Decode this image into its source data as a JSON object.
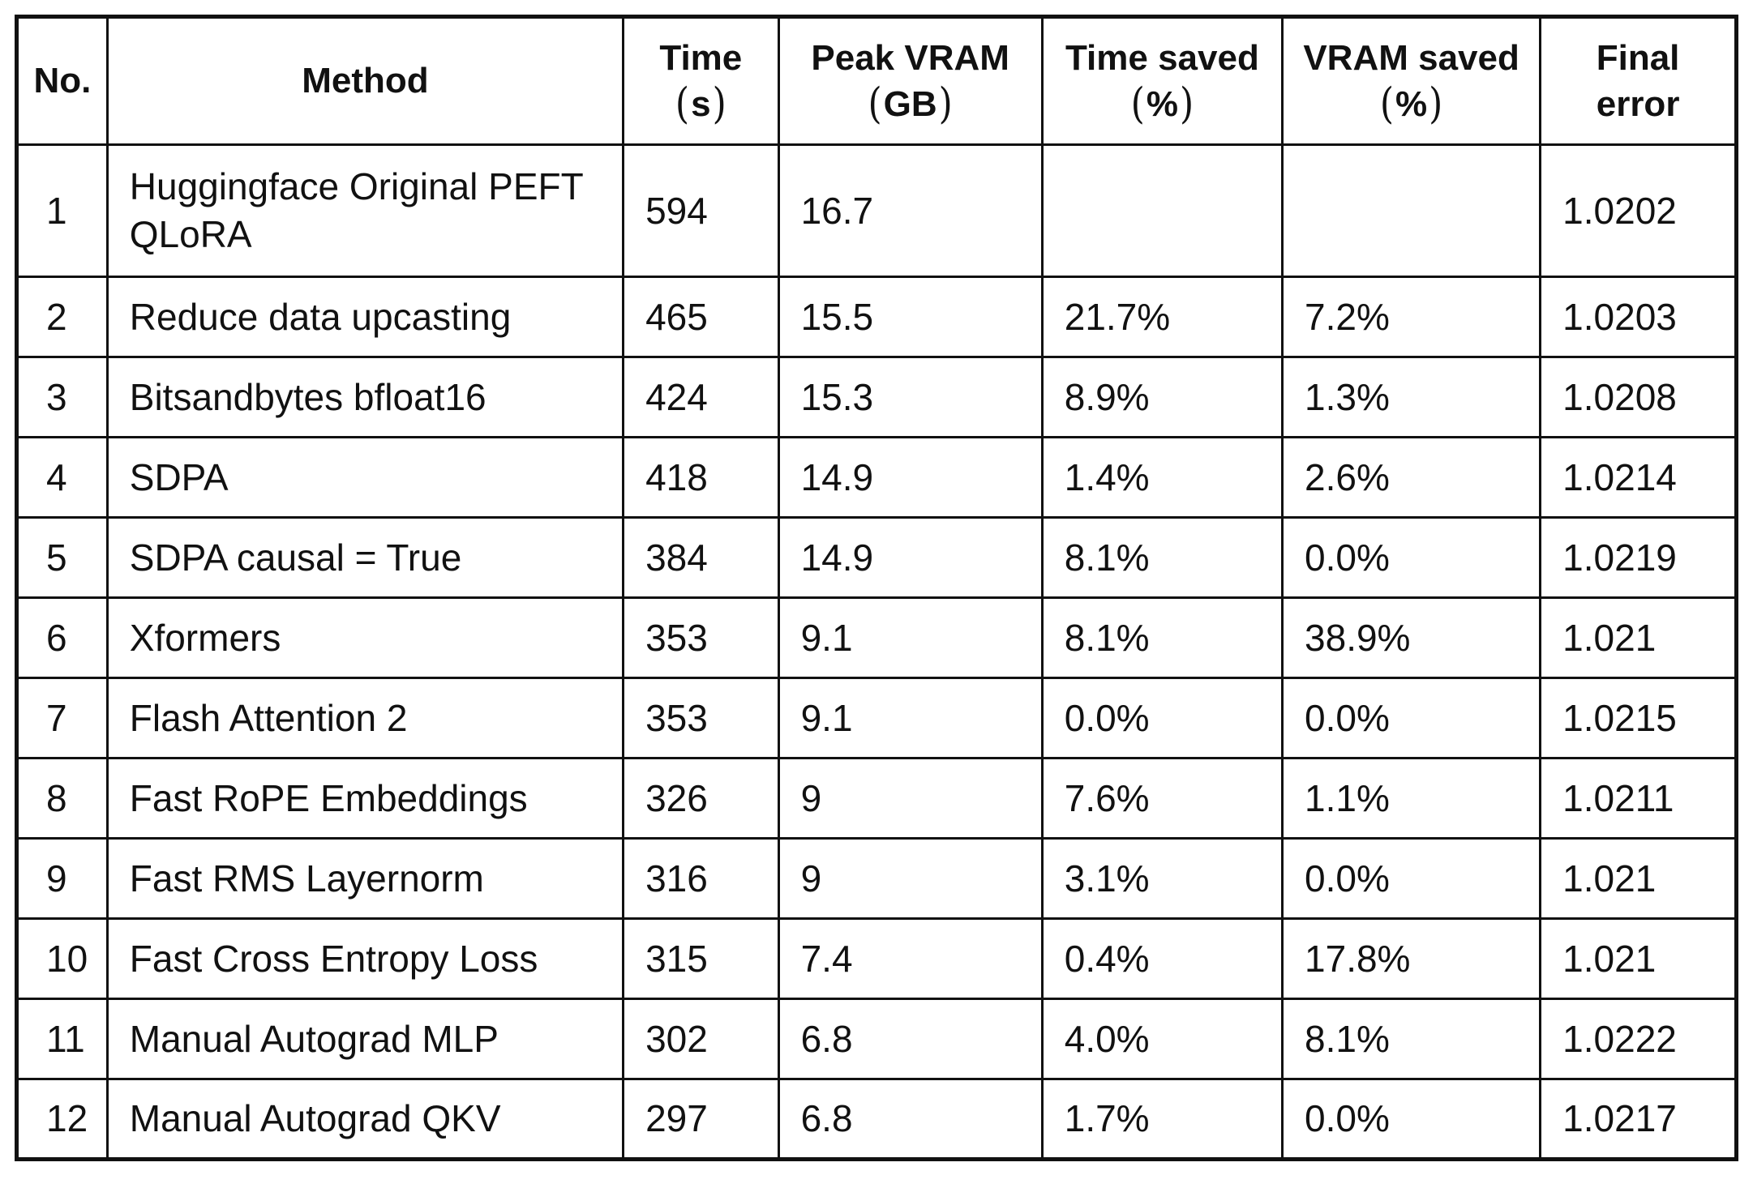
{
  "colors": {
    "background": "#ffffff",
    "text": "#111111",
    "border": "#111111"
  },
  "table": {
    "columns": [
      {
        "label": "No.",
        "unit": ""
      },
      {
        "label": "Method",
        "unit": ""
      },
      {
        "label": "Time",
        "unit": "s"
      },
      {
        "label": "Peak VRAM",
        "unit": "GB"
      },
      {
        "label": "Time saved",
        "unit": "%"
      },
      {
        "label": "VRAM saved",
        "unit": "%"
      },
      {
        "label": "Final error",
        "unit": ""
      }
    ],
    "rows": [
      {
        "no": "1",
        "method": "Huggingface Original PEFT QLoRA",
        "time": "594",
        "peak_vram": "16.7",
        "time_saved": "",
        "vram_saved": "",
        "final_error": "1.0202"
      },
      {
        "no": "2",
        "method": "Reduce data upcasting",
        "time": "465",
        "peak_vram": "15.5",
        "time_saved": "21.7%",
        "vram_saved": "7.2%",
        "final_error": "1.0203"
      },
      {
        "no": "3",
        "method": "Bitsandbytes bfloat16",
        "time": "424",
        "peak_vram": "15.3",
        "time_saved": "8.9%",
        "vram_saved": "1.3%",
        "final_error": "1.0208"
      },
      {
        "no": "4",
        "method": "SDPA",
        "time": "418",
        "peak_vram": "14.9",
        "time_saved": "1.4%",
        "vram_saved": "2.6%",
        "final_error": "1.0214"
      },
      {
        "no": "5",
        "method": "SDPA causal = True",
        "time": "384",
        "peak_vram": "14.9",
        "time_saved": "8.1%",
        "vram_saved": "0.0%",
        "final_error": "1.0219"
      },
      {
        "no": "6",
        "method": "Xformers",
        "time": "353",
        "peak_vram": "9.1",
        "time_saved": "8.1%",
        "vram_saved": "38.9%",
        "final_error": "1.021"
      },
      {
        "no": "7",
        "method": "Flash Attention 2",
        "time": "353",
        "peak_vram": "9.1",
        "time_saved": "0.0%",
        "vram_saved": "0.0%",
        "final_error": "1.0215"
      },
      {
        "no": "8",
        "method": "Fast RoPE Embeddings",
        "time": "326",
        "peak_vram": "9",
        "time_saved": "7.6%",
        "vram_saved": "1.1%",
        "final_error": "1.0211"
      },
      {
        "no": "9",
        "method": "Fast RMS Layernorm",
        "time": "316",
        "peak_vram": "9",
        "time_saved": "3.1%",
        "vram_saved": "0.0%",
        "final_error": "1.021"
      },
      {
        "no": "10",
        "method": "Fast Cross Entropy Loss",
        "time": "315",
        "peak_vram": "7.4",
        "time_saved": "0.4%",
        "vram_saved": "17.8%",
        "final_error": "1.021"
      },
      {
        "no": "11",
        "method": "Manual Autograd MLP",
        "time": "302",
        "peak_vram": "6.8",
        "time_saved": "4.0%",
        "vram_saved": "8.1%",
        "final_error": "1.0222"
      },
      {
        "no": "12",
        "method": "Manual Autograd QKV",
        "time": "297",
        "peak_vram": "6.8",
        "time_saved": "1.7%",
        "vram_saved": "0.0%",
        "final_error": "1.0217"
      }
    ]
  }
}
